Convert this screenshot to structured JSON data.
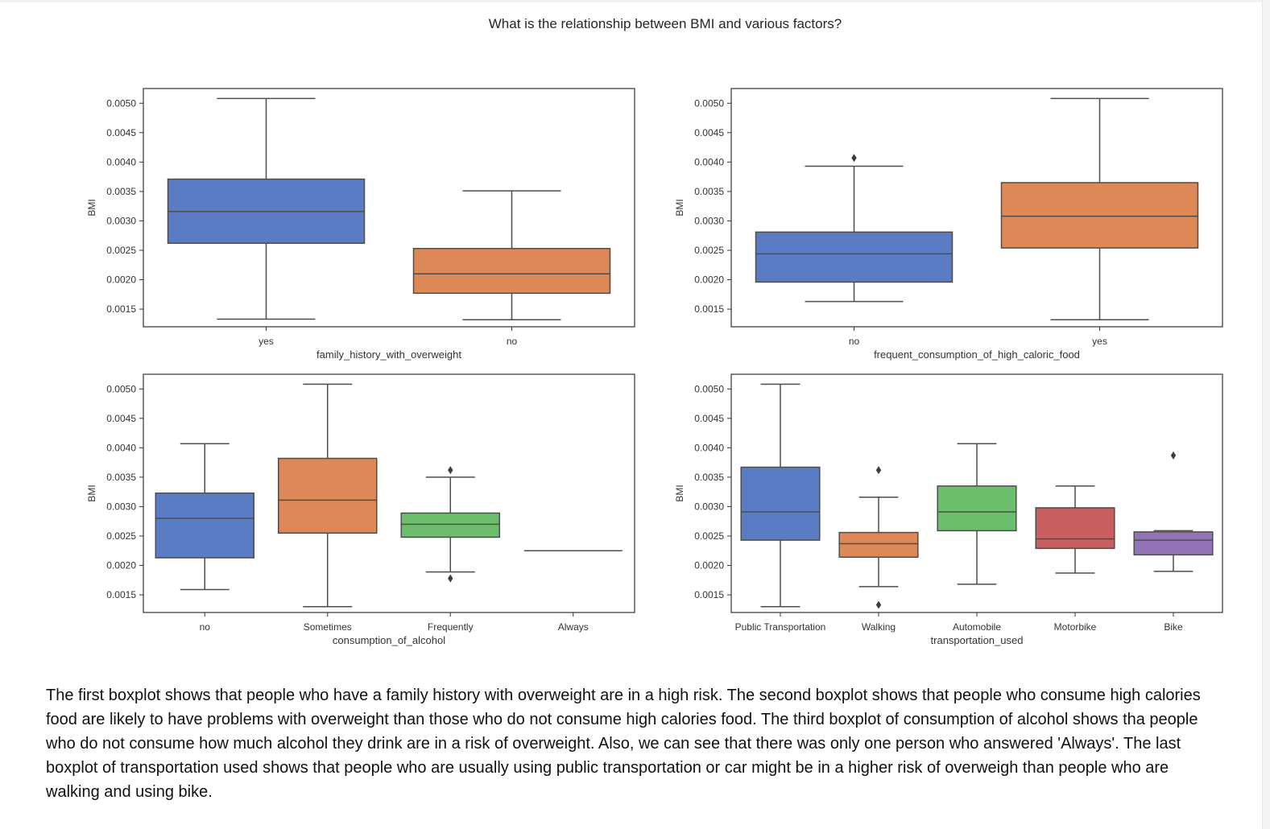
{
  "figure": {
    "title": "What is the relationship between BMI and various factors?"
  },
  "chart_data": [
    {
      "type": "box",
      "xlabel": "family_history_with_overweight",
      "ylabel": "BMI",
      "ylim": [
        0.0012,
        0.00525
      ],
      "yticks": [
        "0.0015",
        "0.0020",
        "0.0025",
        "0.0030",
        "0.0035",
        "0.0040",
        "0.0045",
        "0.0050"
      ],
      "categories": [
        "yes",
        "no"
      ],
      "boxes": [
        {
          "category": "yes",
          "whisker_low": 0.00133,
          "q1": 0.00262,
          "median": 0.00316,
          "q3": 0.00371,
          "whisker_high": 0.00508,
          "outliers": [],
          "color": "#5a7cc4"
        },
        {
          "category": "no",
          "whisker_low": 0.00132,
          "q1": 0.00177,
          "median": 0.0021,
          "q3": 0.00253,
          "whisker_high": 0.00351,
          "outliers": [],
          "color": "#dd8857"
        }
      ]
    },
    {
      "type": "box",
      "xlabel": "frequent_consumption_of_high_caloric_food",
      "ylabel": "BMI",
      "ylim": [
        0.0012,
        0.00525
      ],
      "yticks": [
        "0.0015",
        "0.0020",
        "0.0025",
        "0.0030",
        "0.0035",
        "0.0040",
        "0.0045",
        "0.0050"
      ],
      "categories": [
        "no",
        "yes"
      ],
      "boxes": [
        {
          "category": "no",
          "whisker_low": 0.00163,
          "q1": 0.00196,
          "median": 0.00244,
          "q3": 0.00281,
          "whisker_high": 0.00393,
          "outliers": [
            0.00407
          ],
          "color": "#5a7cc4"
        },
        {
          "category": "yes",
          "whisker_low": 0.00132,
          "q1": 0.00254,
          "median": 0.00308,
          "q3": 0.00365,
          "whisker_high": 0.00508,
          "outliers": [],
          "color": "#dd8857"
        }
      ]
    },
    {
      "type": "box",
      "xlabel": "consumption_of_alcohol",
      "ylabel": "BMI",
      "ylim": [
        0.0012,
        0.00525
      ],
      "yticks": [
        "0.0015",
        "0.0020",
        "0.0025",
        "0.0030",
        "0.0035",
        "0.0040",
        "0.0045",
        "0.0050"
      ],
      "categories": [
        "no",
        "Sometimes",
        "Frequently",
        "Always"
      ],
      "boxes": [
        {
          "category": "no",
          "whisker_low": 0.00159,
          "q1": 0.00213,
          "median": 0.0028,
          "q3": 0.00323,
          "whisker_high": 0.00407,
          "outliers": [],
          "color": "#5a7cc4"
        },
        {
          "category": "Sometimes",
          "whisker_low": 0.0013,
          "q1": 0.00255,
          "median": 0.00311,
          "q3": 0.00382,
          "whisker_high": 0.00508,
          "outliers": [],
          "color": "#dd8857"
        },
        {
          "category": "Frequently",
          "whisker_low": 0.00189,
          "q1": 0.00248,
          "median": 0.0027,
          "q3": 0.00289,
          "whisker_high": 0.0035,
          "outliers": [
            0.00362,
            0.00178
          ],
          "color": "#6cbe6c"
        },
        {
          "category": "Always",
          "whisker_low": 0.00225,
          "q1": 0.00225,
          "median": 0.00225,
          "q3": 0.00225,
          "whisker_high": 0.00225,
          "outliers": [],
          "color": "#d05d5d"
        }
      ]
    },
    {
      "type": "box",
      "xlabel": "transportation_used",
      "ylabel": "BMI",
      "ylim": [
        0.0012,
        0.00525
      ],
      "yticks": [
        "0.0015",
        "0.0020",
        "0.0025",
        "0.0030",
        "0.0035",
        "0.0040",
        "0.0045",
        "0.0050"
      ],
      "categories": [
        "Public Transportation",
        "Walking",
        "Automobile",
        "Motorbike",
        "Bike"
      ],
      "boxes": [
        {
          "category": "Public Transportation",
          "whisker_low": 0.0013,
          "q1": 0.00243,
          "median": 0.00291,
          "q3": 0.00367,
          "whisker_high": 0.00508,
          "outliers": [],
          "color": "#5a7cc4"
        },
        {
          "category": "Walking",
          "whisker_low": 0.00164,
          "q1": 0.00214,
          "median": 0.00237,
          "q3": 0.00256,
          "whisker_high": 0.00316,
          "outliers": [
            0.00362,
            0.00133
          ],
          "color": "#dd8857"
        },
        {
          "category": "Automobile",
          "whisker_low": 0.00168,
          "q1": 0.00259,
          "median": 0.00291,
          "q3": 0.00335,
          "whisker_high": 0.00407,
          "outliers": [],
          "color": "#6cbe6c"
        },
        {
          "category": "Motorbike",
          "whisker_low": 0.00187,
          "q1": 0.00229,
          "median": 0.00245,
          "q3": 0.00298,
          "whisker_high": 0.00335,
          "outliers": [],
          "color": "#c95f5f"
        },
        {
          "category": "Bike",
          "whisker_low": 0.0019,
          "q1": 0.00218,
          "median": 0.00243,
          "q3": 0.00257,
          "whisker_high": 0.00259,
          "outliers": [
            0.00387
          ],
          "color": "#9273b6"
        }
      ]
    }
  ],
  "commentary": "The first boxplot shows that people who have a family history with overweight are in a high risk. The second boxplot shows that people who consume high calories food are likely to have problems with overweight than those who do not consume high calories food. The third boxplot of consumption of alcohol shows tha people who do not consume how much alcohol they drink are in a risk of overweight. Also, we can see that there was only one person who answered 'Always'. The last boxplot of transportation used shows that people who are usually using public transportation or car might be in a higher risk of overweigh than people who are walking and using bike."
}
